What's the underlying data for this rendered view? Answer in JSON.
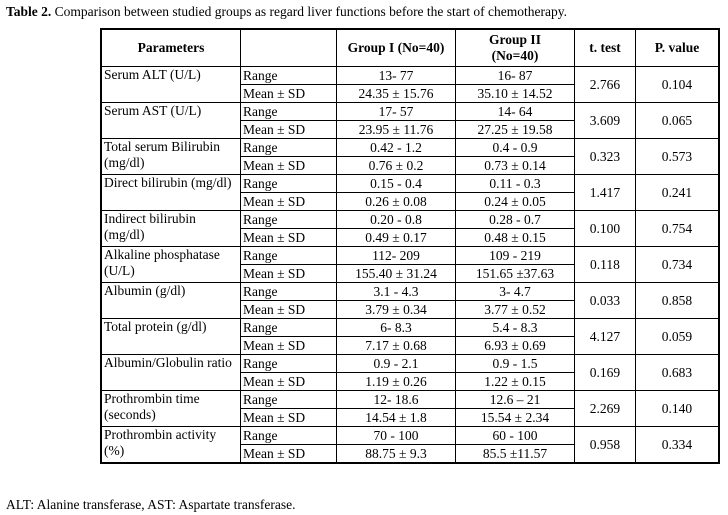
{
  "caption": {
    "bold": "Table 2.",
    "text": " Comparison between studied groups as regard liver functions before the start of chemotherapy."
  },
  "headers": {
    "parameters": "Parameters",
    "group1": "Group I (No=40)",
    "group2_line1": "Group II",
    "group2_line2": "(No=40)",
    "ttest": "t. test",
    "pvalue": "P. value"
  },
  "rows": [
    {
      "param": "Serum ALT (U/L)",
      "range_label": "Range",
      "mean_label": "Mean ± SD",
      "g1_range": "13- 77",
      "g1_mean": "24.35 ± 15.76",
      "g2_range": "16- 87",
      "g2_mean": "35.10 ± 14.52",
      "t": "2.766",
      "p": "0.104"
    },
    {
      "param": "Serum AST (U/L)",
      "range_label": "Range",
      "mean_label": "Mean ± SD",
      "g1_range": "17- 57",
      "g1_mean": "23.95 ± 11.76",
      "g2_range": "14- 64",
      "g2_mean": "27.25 ± 19.58",
      "t": "3.609",
      "p": "0.065"
    },
    {
      "param": "Total serum Bilirubin (mg/dl)",
      "range_label": "Range",
      "mean_label": "Mean ± SD",
      "g1_range": "0.42 - 1.2",
      "g1_mean": "0.76 ± 0.2",
      "g2_range": "0.4 - 0.9",
      "g2_mean": "0.73 ± 0.14",
      "t": "0.323",
      "p": "0.573"
    },
    {
      "param": "Direct bilirubin (mg/dl)",
      "range_label": "Range",
      "mean_label": "Mean ± SD",
      "g1_range": "0.15 - 0.4",
      "g1_mean": "0.26 ± 0.08",
      "g2_range": "0.11 - 0.3",
      "g2_mean": "0.24 ± 0.05",
      "t": "1.417",
      "p": "0.241"
    },
    {
      "param": "Indirect bilirubin (mg/dl)",
      "range_label": "Range",
      "mean_label": "Mean ± SD",
      "g1_range": "0.20 - 0.8",
      "g1_mean": "0.49 ± 0.17",
      "g2_range": "0.28 - 0.7",
      "g2_mean": "0.48 ± 0.15",
      "t": "0.100",
      "p": "0.754"
    },
    {
      "param": "Alkaline phosphatase (U/L)",
      "range_label": "Range",
      "mean_label": "Mean ± SD",
      "g1_range": "112- 209",
      "g1_mean": "155.40 ± 31.24",
      "g2_range": "109 - 219",
      "g2_mean": "151.65 ±37.63",
      "t": "0.118",
      "p": "0.734"
    },
    {
      "param": "Albumin (g/dl)",
      "range_label": "Range",
      "mean_label": "Mean ± SD",
      "g1_range": "3.1 - 4.3",
      "g1_mean": "3.79 ± 0.34",
      "g2_range": "3- 4.7",
      "g2_mean": "3.77 ± 0.52",
      "t": "0.033",
      "p": "0.858"
    },
    {
      "param": "Total protein (g/dl)",
      "range_label": "Range",
      "mean_label": "Mean ± SD",
      "g1_range": "6- 8.3",
      "g1_mean": "7.17 ± 0.68",
      "g2_range": "5.4 - 8.3",
      "g2_mean": "6.93 ± 0.69",
      "t": "4.127",
      "p": "0.059"
    },
    {
      "param": "Albumin/Globulin ratio",
      "range_label": "Range",
      "mean_label": "Mean ± SD",
      "g1_range": "0.9 - 2.1",
      "g1_mean": "1.19 ± 0.26",
      "g2_range": "0.9 - 1.5",
      "g2_mean": "1.22 ± 0.15",
      "t": "0.169",
      "p": "0.683"
    },
    {
      "param": "Prothrombin time (seconds)",
      "range_label": "Range",
      "mean_label": "Mean ± SD",
      "g1_range": "12- 18.6",
      "g1_mean": "14.54 ± 1.8",
      "g2_range": "12.6 – 21",
      "g2_mean": "15.54 ± 2.34",
      "t": "2.269",
      "p": "0.140"
    },
    {
      "param": "Prothrombin activity (%)",
      "range_label": "Range",
      "mean_label": "Mean ± SD",
      "g1_range": "70 - 100",
      "g1_mean": "88.75 ± 9.3",
      "g2_range": "60 - 100",
      "g2_mean": "85.5 ±11.57",
      "t": "0.958",
      "p": "0.334"
    }
  ],
  "footnote": "ALT: Alanine transferase, AST: Aspartate transferase."
}
